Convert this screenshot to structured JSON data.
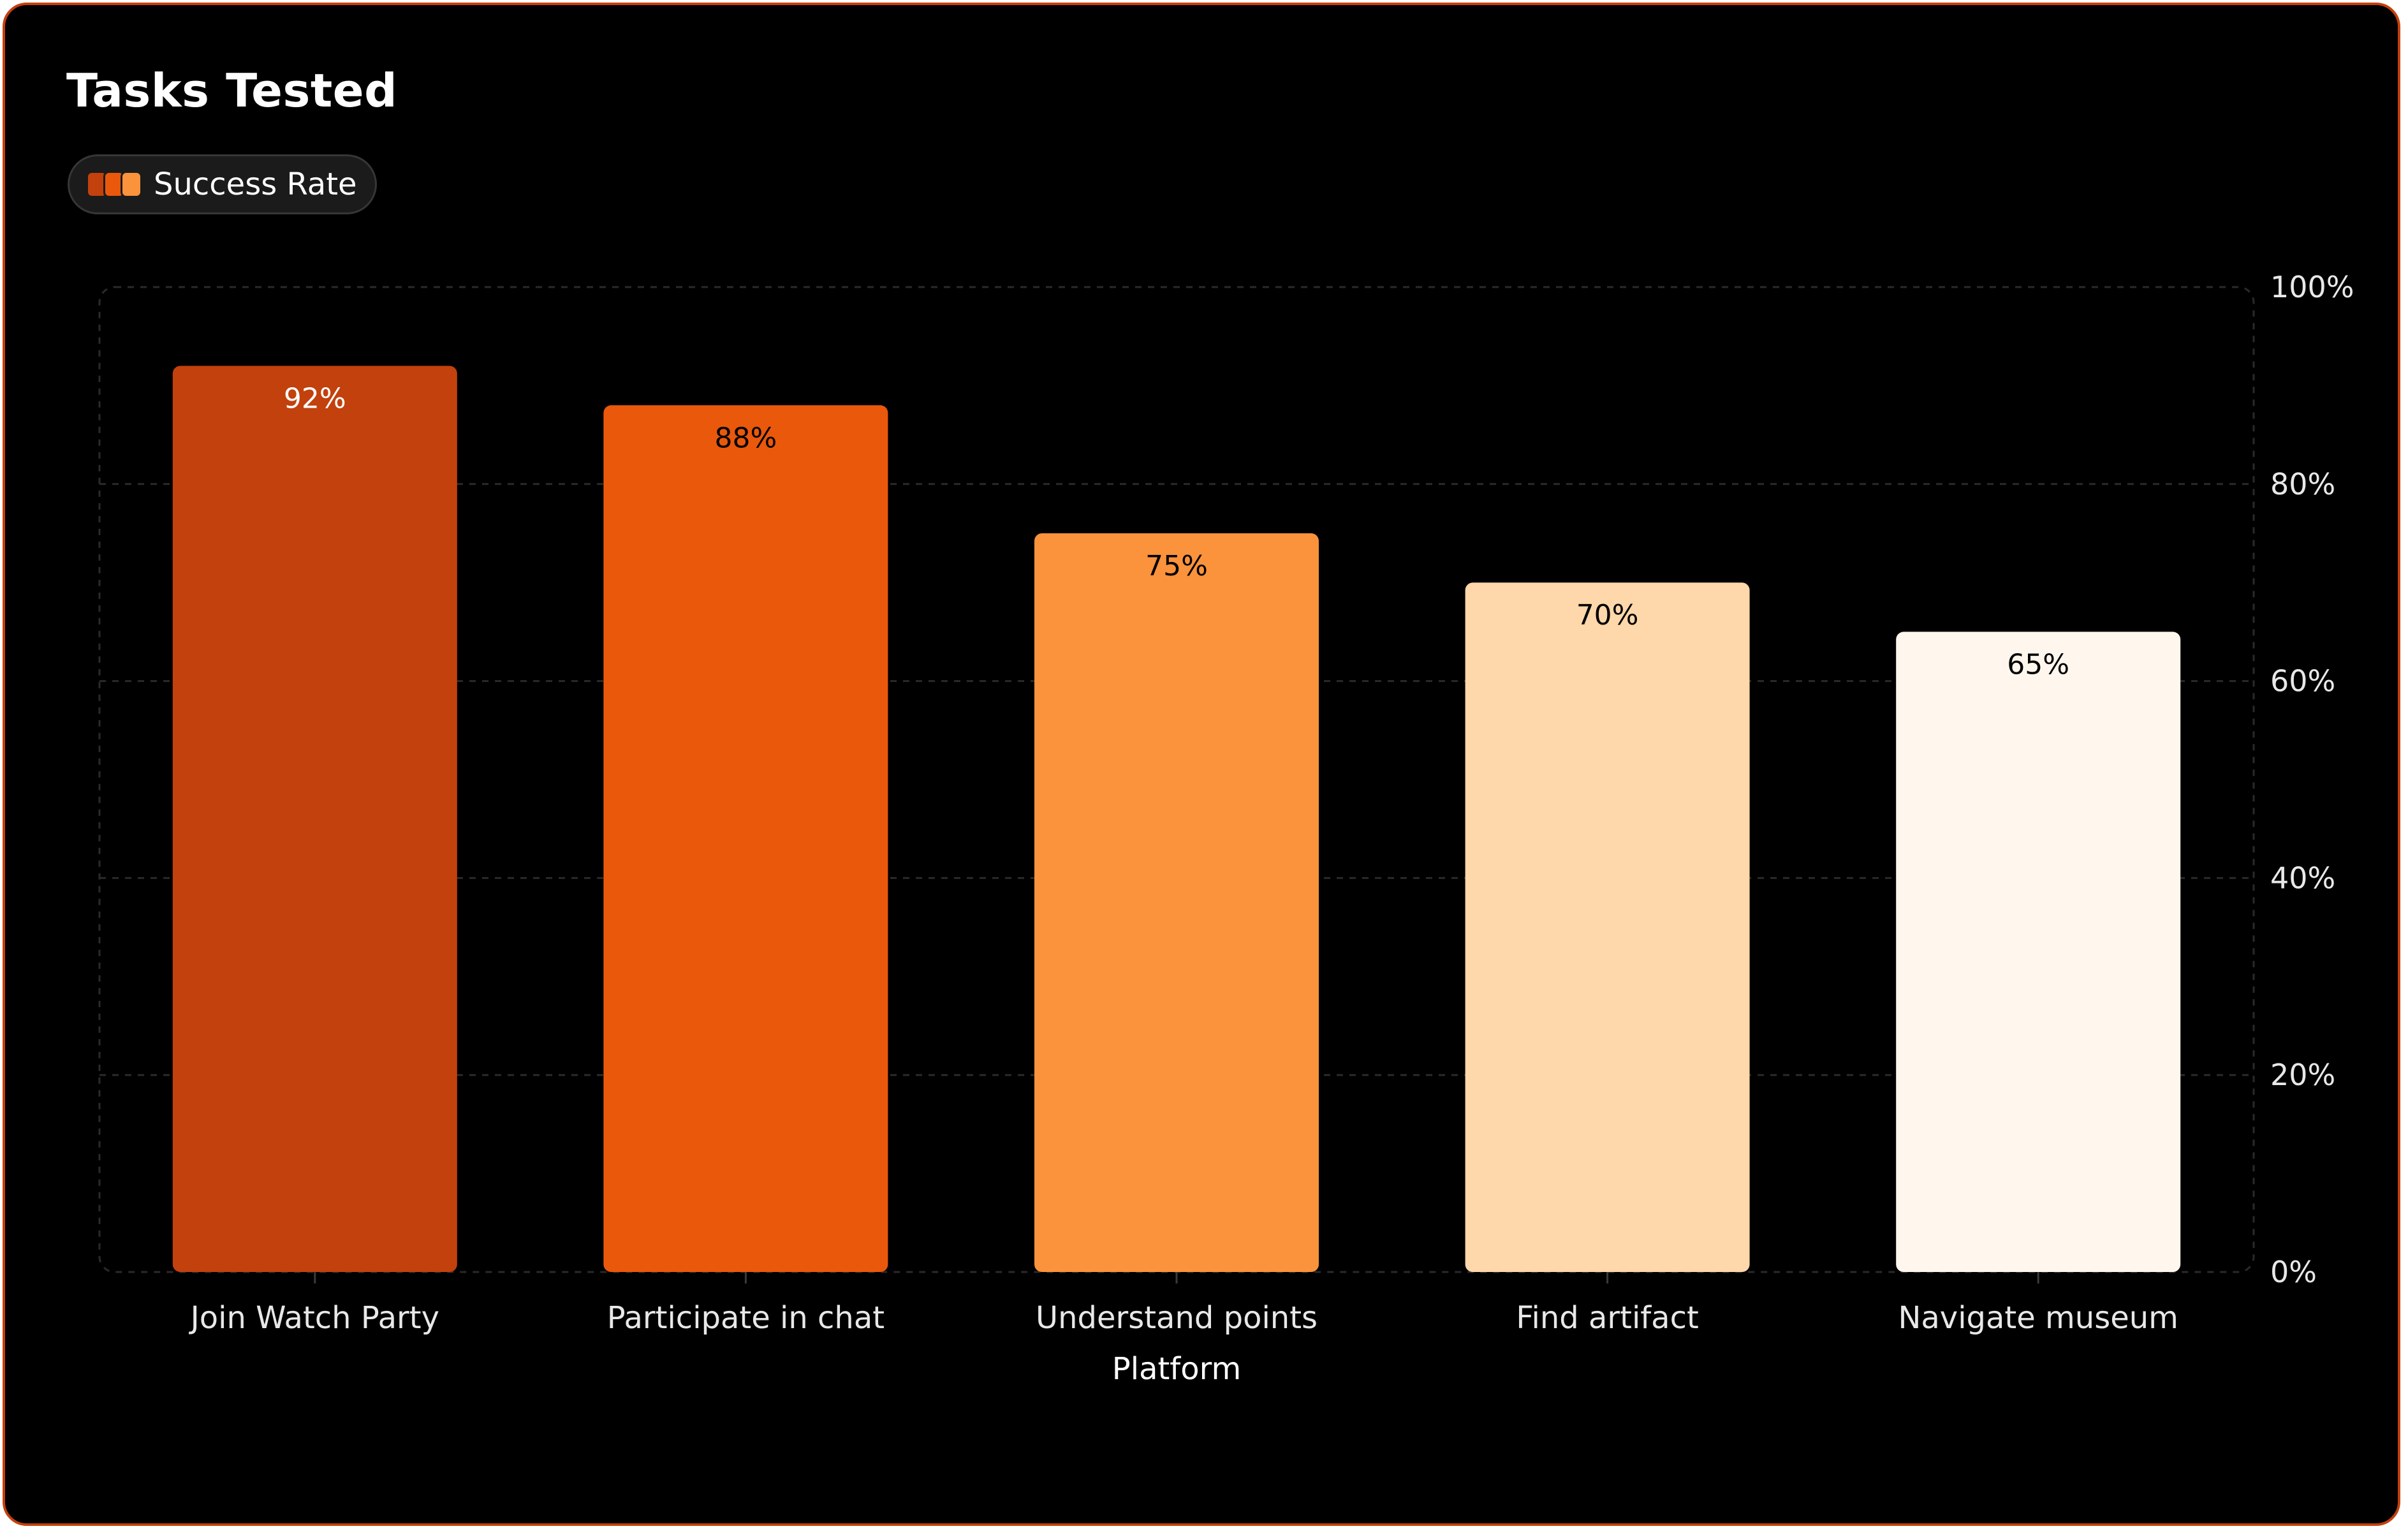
{
  "title": "Tasks Tested",
  "legend": {
    "label": "Success Rate",
    "swatch_colors": [
      "#c2410c",
      "#ea580c",
      "#fb923c"
    ]
  },
  "chart_data": {
    "type": "bar",
    "title": "Tasks Tested",
    "categories": [
      "Join Watch Party",
      "Participate in chat",
      "Understand points",
      "Find artifact",
      "Navigate museum"
    ],
    "series": [
      {
        "name": "Success Rate",
        "values": [
          92,
          88,
          75,
          70,
          65
        ]
      }
    ],
    "value_labels": [
      "92%",
      "88%",
      "75%",
      "70%",
      "65%"
    ],
    "bar_colors": [
      "#c2410c",
      "#ea580c",
      "#fb923c",
      "#fed7aa",
      "#fff7ed"
    ],
    "label_colors": [
      "#ffffff",
      "#000000",
      "#000000",
      "#000000",
      "#000000"
    ],
    "xlabel": "Platform",
    "ylabel": "",
    "ylim": [
      0,
      100
    ],
    "yticks": [
      0,
      20,
      40,
      60,
      80,
      100
    ],
    "ytick_labels": [
      "0%",
      "20%",
      "40%",
      "60%",
      "80%",
      "100%"
    ],
    "y_axis_side": "right",
    "grid": true,
    "legend_position": "top-left"
  }
}
